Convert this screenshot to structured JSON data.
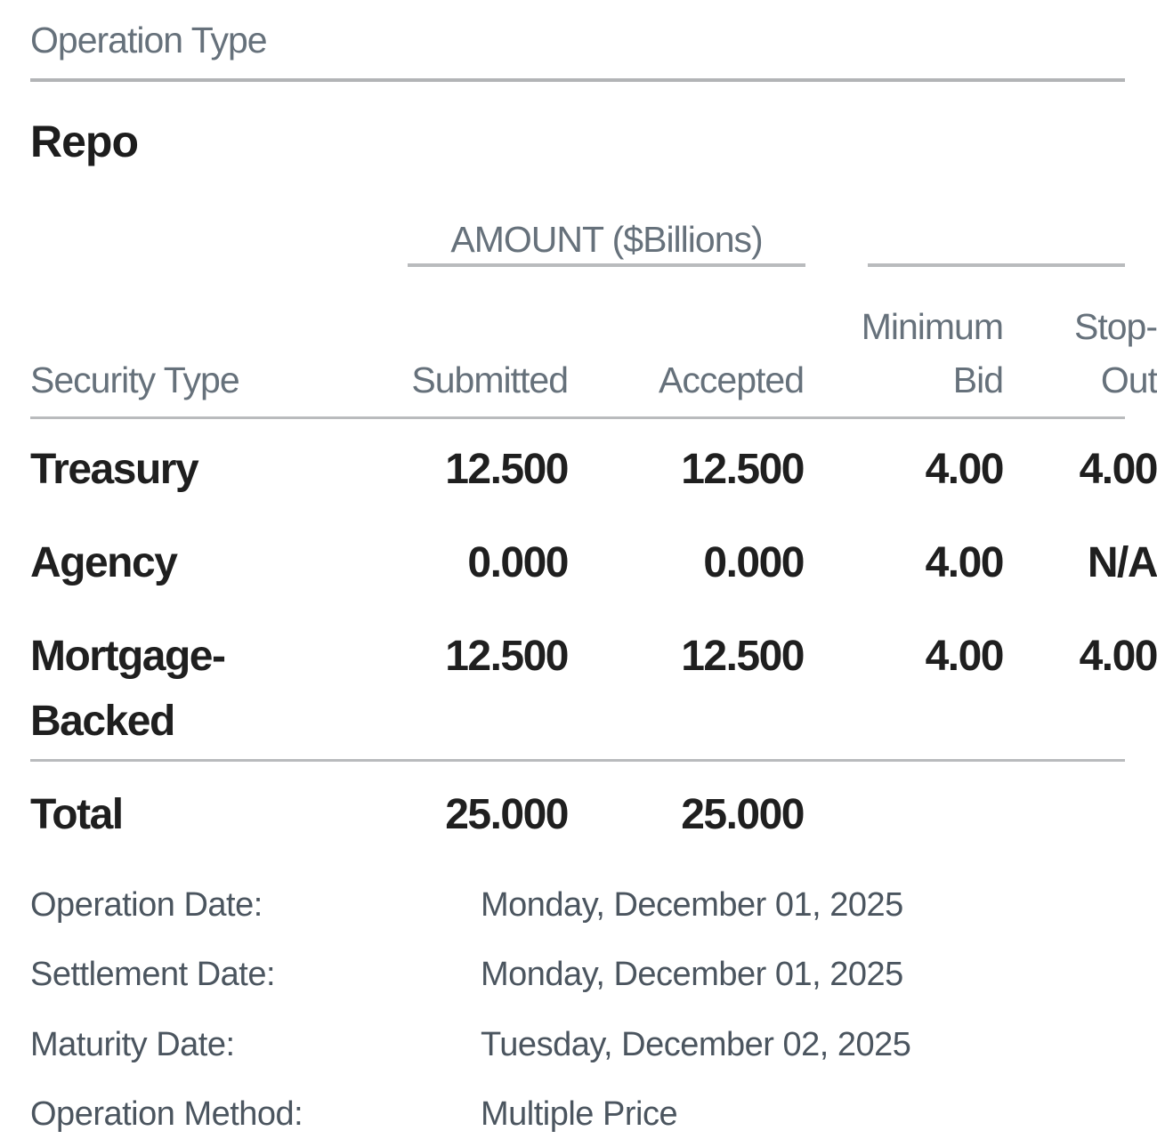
{
  "header": {
    "operation_type_label": "Operation Type",
    "operation_type_value": "Repo"
  },
  "table": {
    "amount_group_label": "AMOUNT ($Billions)",
    "columns": {
      "security_type": "Security Type",
      "submitted": "Submitted",
      "accepted": "Accepted",
      "minimum_bid": [
        "Minimum",
        "Bid"
      ],
      "stop_out": [
        "Stop-",
        "Out"
      ]
    },
    "rows": [
      {
        "security_type": [
          "Treasury"
        ],
        "submitted": "12.500",
        "accepted": "12.500",
        "minimum_bid": "4.00",
        "stop_out": "4.00"
      },
      {
        "security_type": [
          "Agency"
        ],
        "submitted": "0.000",
        "accepted": "0.000",
        "minimum_bid": "4.00",
        "stop_out": "N/A"
      },
      {
        "security_type": [
          "Mortgage-",
          "Backed"
        ],
        "submitted": "12.500",
        "accepted": "12.500",
        "minimum_bid": "4.00",
        "stop_out": "4.00"
      }
    ],
    "total_row": {
      "label": "Total",
      "submitted": "25.000",
      "accepted": "25.000"
    }
  },
  "details": {
    "rows": [
      {
        "label": "Operation Date:",
        "value": "Monday, December 01, 2025"
      },
      {
        "label": "Settlement Date:",
        "value": "Monday, December 01, 2025"
      },
      {
        "label": "Maturity Date:",
        "value": "Tuesday, December 02, 2025"
      },
      {
        "label": "Operation Method:",
        "value": "Multiple Price"
      }
    ]
  }
}
